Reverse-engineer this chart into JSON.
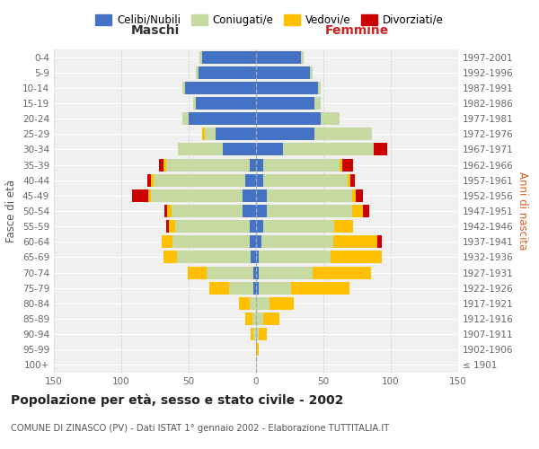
{
  "age_groups": [
    "100+",
    "95-99",
    "90-94",
    "85-89",
    "80-84",
    "75-79",
    "70-74",
    "65-69",
    "60-64",
    "55-59",
    "50-54",
    "45-49",
    "40-44",
    "35-39",
    "30-34",
    "25-29",
    "20-24",
    "15-19",
    "10-14",
    "5-9",
    "0-4"
  ],
  "birth_years": [
    "≤ 1901",
    "1902-1906",
    "1907-1911",
    "1912-1916",
    "1917-1921",
    "1922-1926",
    "1927-1931",
    "1932-1936",
    "1937-1941",
    "1942-1946",
    "1947-1951",
    "1952-1956",
    "1957-1961",
    "1962-1966",
    "1967-1971",
    "1972-1976",
    "1977-1981",
    "1982-1986",
    "1987-1991",
    "1992-1996",
    "1997-2001"
  ],
  "males": {
    "celibe": [
      0,
      0,
      0,
      0,
      0,
      2,
      2,
      4,
      5,
      5,
      10,
      10,
      8,
      5,
      25,
      30,
      50,
      45,
      53,
      43,
      40
    ],
    "coniugato": [
      0,
      0,
      2,
      3,
      5,
      18,
      35,
      55,
      57,
      55,
      53,
      68,
      68,
      62,
      33,
      8,
      5,
      2,
      2,
      2,
      2
    ],
    "vedovo": [
      0,
      0,
      2,
      5,
      8,
      15,
      14,
      10,
      8,
      5,
      3,
      2,
      2,
      2,
      0,
      2,
      0,
      0,
      0,
      0,
      0
    ],
    "divorziato": [
      0,
      0,
      0,
      0,
      0,
      0,
      0,
      0,
      0,
      2,
      2,
      12,
      3,
      3,
      0,
      0,
      0,
      0,
      0,
      0,
      0
    ]
  },
  "females": {
    "nubile": [
      0,
      0,
      0,
      0,
      0,
      2,
      2,
      2,
      4,
      5,
      8,
      8,
      5,
      5,
      20,
      43,
      48,
      43,
      46,
      40,
      33
    ],
    "coniugata": [
      0,
      0,
      2,
      5,
      10,
      24,
      40,
      53,
      53,
      53,
      63,
      63,
      63,
      57,
      67,
      43,
      14,
      5,
      2,
      2,
      2
    ],
    "vedova": [
      0,
      2,
      6,
      12,
      18,
      43,
      43,
      38,
      33,
      14,
      8,
      3,
      2,
      2,
      0,
      0,
      0,
      0,
      0,
      0,
      0
    ],
    "divorziata": [
      0,
      0,
      0,
      0,
      0,
      0,
      0,
      0,
      3,
      0,
      5,
      5,
      3,
      8,
      10,
      0,
      0,
      0,
      0,
      0,
      0
    ]
  },
  "colors": {
    "celibe": "#4472c4",
    "coniugato": "#c5d9a0",
    "vedovo": "#ffc000",
    "divorziato": "#cc0000"
  },
  "title": "Popolazione per età, sesso e stato civile - 2002",
  "subtitle": "COMUNE DI ZINASCO (PV) - Dati ISTAT 1° gennaio 2002 - Elaborazione TUTTITALIA.IT",
  "label_maschi": "Maschi",
  "label_femmine": "Femmine",
  "ylabel_left": "Fasce di età",
  "ylabel_right": "Anni di nascita",
  "xlim": 150,
  "legend_labels": [
    "Celibi/Nubili",
    "Coniugati/e",
    "Vedovi/e",
    "Divorziati/e"
  ],
  "bg_color": "#ffffff",
  "plot_bg": "#f0f0f0",
  "grid_color": "#cccccc"
}
